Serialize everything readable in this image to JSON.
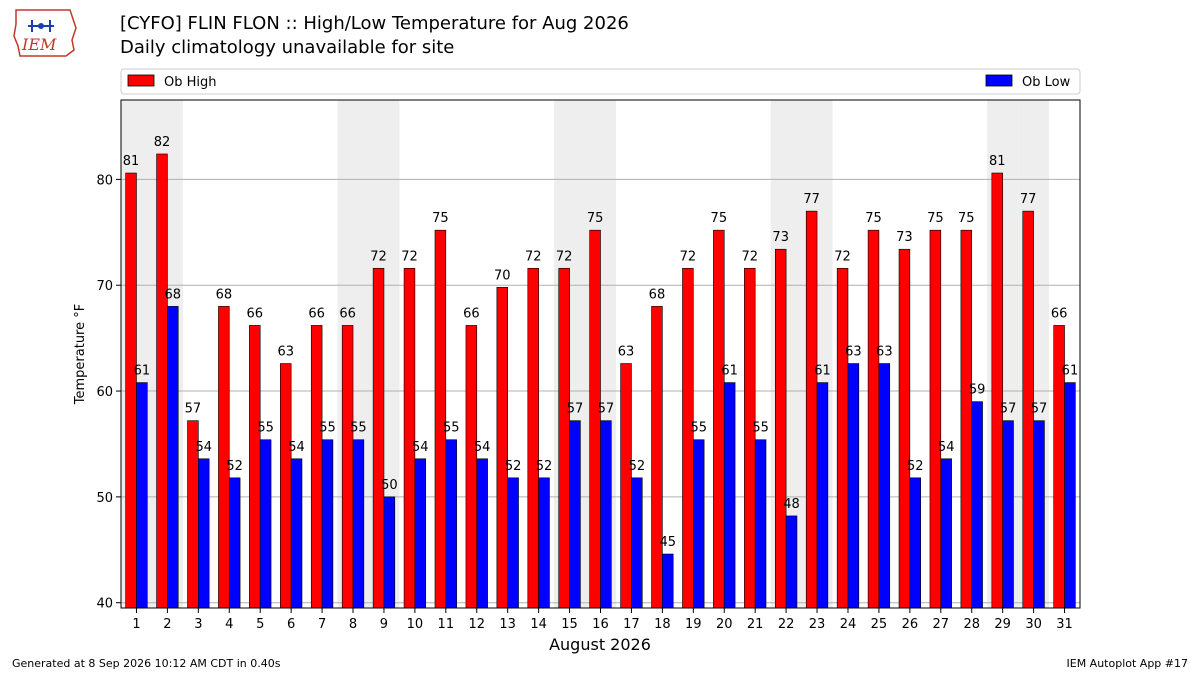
{
  "header": {
    "logo_text": "IEM",
    "title": "[CYFO] FLIN FLON :: High/Low Temperature for Aug 2026",
    "subtitle": "Daily climatology unavailable for site"
  },
  "footer": {
    "generated": "Generated at 8 Sep 2026 10:12 AM CDT in 0.40s",
    "app": "IEM Autoplot App #17"
  },
  "chart_data": {
    "type": "bar",
    "xlabel": "August 2026",
    "ylabel": "Temperature °F",
    "ylim": [
      39.5,
      87.5
    ],
    "yticks": [
      40,
      50,
      60,
      70,
      80
    ],
    "grid": true,
    "legend_placement": "top, above plot",
    "weekend_shading_days": [
      1,
      2,
      8,
      9,
      15,
      16,
      22,
      23,
      29,
      30
    ],
    "categories": [
      "1",
      "2",
      "3",
      "4",
      "5",
      "6",
      "7",
      "8",
      "9",
      "10",
      "11",
      "12",
      "13",
      "14",
      "15",
      "16",
      "17",
      "18",
      "19",
      "20",
      "21",
      "22",
      "23",
      "24",
      "25",
      "26",
      "27",
      "28",
      "29",
      "30",
      "31"
    ],
    "series": [
      {
        "name": "Ob High",
        "color": "#ff0000",
        "values": [
          80.6,
          82.4,
          57.2,
          68.0,
          66.2,
          62.6,
          66.2,
          66.2,
          71.6,
          71.6,
          75.2,
          66.2,
          69.8,
          71.6,
          71.6,
          75.2,
          62.6,
          68.0,
          71.6,
          75.2,
          71.6,
          73.4,
          77.0,
          71.6,
          75.2,
          73.4,
          75.2,
          75.2,
          80.6,
          77.0,
          66.2
        ],
        "labels": [
          "81",
          "82",
          "57",
          "68",
          "66",
          "63",
          "66",
          "66",
          "72",
          "72",
          "75",
          "66",
          "70",
          "72",
          "72",
          "75",
          "63",
          "68",
          "72",
          "75",
          "72",
          "73",
          "77",
          "72",
          "75",
          "73",
          "75",
          "75",
          "81",
          "77",
          "66"
        ]
      },
      {
        "name": "Ob Low",
        "color": "#0000ff",
        "values": [
          60.8,
          68.0,
          53.6,
          51.8,
          55.4,
          53.6,
          55.4,
          55.4,
          50.0,
          53.6,
          55.4,
          53.6,
          51.8,
          51.8,
          57.2,
          57.2,
          51.8,
          44.6,
          55.4,
          60.8,
          55.4,
          48.2,
          60.8,
          62.6,
          62.6,
          51.8,
          53.6,
          59.0,
          57.2,
          57.2,
          60.8
        ],
        "labels": [
          "61",
          "68",
          "54",
          "52",
          "55",
          "54",
          "55",
          "55",
          "50",
          "54",
          "55",
          "54",
          "52",
          "52",
          "57",
          "57",
          "52",
          "45",
          "55",
          "61",
          "55",
          "48",
          "61",
          "63",
          "63",
          "52",
          "54",
          "59",
          "57",
          "57",
          "61"
        ]
      }
    ]
  }
}
